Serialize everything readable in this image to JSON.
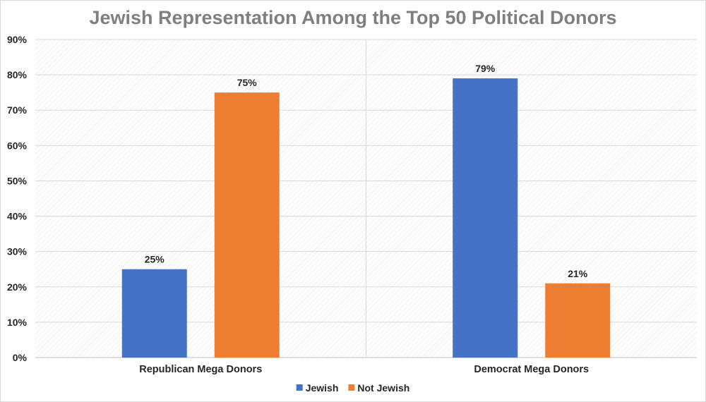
{
  "chart_data": {
    "type": "bar",
    "title": "Jewish Representation Among the Top 50 Political Donors",
    "categories": [
      "Republican Mega Donors",
      "Democrat Mega Donors"
    ],
    "series": [
      {
        "name": "Jewish",
        "color": "#4472c4",
        "values": [
          25,
          79
        ],
        "labels": [
          "25%",
          "79%"
        ]
      },
      {
        "name": "Not Jewish",
        "color": "#ed7d31",
        "values": [
          75,
          21
        ],
        "labels": [
          "75%",
          "21%"
        ]
      }
    ],
    "ylim": [
      0,
      90
    ],
    "yticks": [
      0,
      10,
      20,
      30,
      40,
      50,
      60,
      70,
      80,
      90
    ],
    "ytick_labels": [
      "0%",
      "10%",
      "20%",
      "30%",
      "40%",
      "50%",
      "60%",
      "70%",
      "80%",
      "90%"
    ],
    "xlabel": "",
    "ylabel": "",
    "grid": true,
    "legend_position": "bottom"
  }
}
